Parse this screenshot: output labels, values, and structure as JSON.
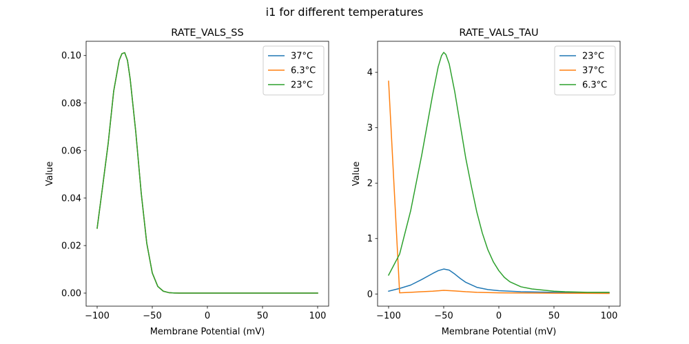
{
  "figure": {
    "suptitle": "i1 for different temperatures"
  },
  "colors": {
    "blue": "#1f77b4",
    "orange": "#ff7f0e",
    "green": "#2ca02c"
  },
  "chart_data": [
    {
      "type": "line",
      "title": "RATE_VALS_SS",
      "xlabel": "Membrane Potential (mV)",
      "ylabel": "Value",
      "xlim": [
        -110,
        110
      ],
      "ylim": [
        -0.0055,
        0.106
      ],
      "xticks": [
        -100,
        -50,
        0,
        50,
        100
      ],
      "xtick_labels": [
        "−100",
        "−50",
        "0",
        "50",
        "100"
      ],
      "yticks": [
        0,
        0.02,
        0.04,
        0.06,
        0.08,
        0.1
      ],
      "ytick_labels": [
        "0.00",
        "0.02",
        "0.04",
        "0.06",
        "0.08",
        "0.10"
      ],
      "legend": "top-right",
      "x": [
        -100,
        -95,
        -90,
        -85,
        -80,
        -77.5,
        -75,
        -72.5,
        -70,
        -65,
        -60,
        -55,
        -50,
        -45,
        -40,
        -35,
        -30,
        -25,
        -20,
        0,
        50,
        100
      ],
      "series": [
        {
          "name": "37°C",
          "color": "#1f77b4",
          "values": [
            0.0273,
            0.045,
            0.063,
            0.085,
            0.098,
            0.1008,
            0.1012,
            0.098,
            0.09,
            0.068,
            0.042,
            0.021,
            0.0085,
            0.0028,
            0.0008,
            0.0002,
            5e-05,
            1e-05,
            0,
            0,
            0,
            0
          ]
        },
        {
          "name": "6.3°C",
          "color": "#ff7f0e",
          "values": [
            0.0273,
            0.045,
            0.063,
            0.085,
            0.098,
            0.1008,
            0.1012,
            0.098,
            0.09,
            0.068,
            0.042,
            0.021,
            0.0085,
            0.0028,
            0.0008,
            0.0002,
            5e-05,
            1e-05,
            0,
            0,
            0,
            0
          ]
        },
        {
          "name": "23°C",
          "color": "#2ca02c",
          "values": [
            0.0273,
            0.045,
            0.063,
            0.085,
            0.098,
            0.1008,
            0.1012,
            0.098,
            0.09,
            0.068,
            0.042,
            0.021,
            0.0085,
            0.0028,
            0.0008,
            0.0002,
            5e-05,
            1e-05,
            0,
            0,
            0,
            0
          ]
        }
      ]
    },
    {
      "type": "line",
      "title": "RATE_VALS_TAU",
      "xlabel": "Membrane Potential (mV)",
      "ylabel": "Value",
      "xlim": [
        -110,
        110
      ],
      "ylim": [
        -0.22,
        4.56
      ],
      "xticks": [
        -100,
        -50,
        0,
        50,
        100
      ],
      "xtick_labels": [
        "−100",
        "−50",
        "0",
        "50",
        "100"
      ],
      "yticks": [
        0,
        1,
        2,
        3,
        4
      ],
      "ytick_labels": [
        "0",
        "1",
        "2",
        "3",
        "4"
      ],
      "legend": "top-right",
      "series": [
        {
          "name": "23°C",
          "color": "#1f77b4",
          "x": [
            -100,
            -90,
            -80,
            -70,
            -60,
            -55,
            -50,
            -45,
            -40,
            -35,
            -30,
            -20,
            -10,
            0,
            20,
            50,
            100
          ],
          "values": [
            0.05,
            0.1,
            0.16,
            0.26,
            0.37,
            0.42,
            0.45,
            0.43,
            0.36,
            0.28,
            0.21,
            0.12,
            0.08,
            0.06,
            0.04,
            0.03,
            0.02
          ]
        },
        {
          "name": "37°C",
          "color": "#ff7f0e",
          "x": [
            -100,
            -90,
            -80,
            -70,
            -60,
            -50,
            -40,
            -30,
            -20,
            0,
            50,
            100
          ],
          "values": [
            3.84,
            0.02,
            0.03,
            0.04,
            0.05,
            0.065,
            0.055,
            0.04,
            0.03,
            0.02,
            0.015,
            0.01
          ]
        },
        {
          "name": "6.3°C",
          "color": "#2ca02c",
          "x": [
            -100,
            -90,
            -80,
            -70,
            -60,
            -55,
            -52,
            -50,
            -48,
            -45,
            -40,
            -35,
            -30,
            -25,
            -20,
            -15,
            -10,
            -5,
            0,
            5,
            10,
            20,
            30,
            40,
            50,
            60,
            80,
            100
          ],
          "values": [
            0.34,
            0.72,
            1.5,
            2.5,
            3.6,
            4.1,
            4.3,
            4.36,
            4.32,
            4.15,
            3.65,
            3.05,
            2.45,
            1.95,
            1.48,
            1.1,
            0.8,
            0.58,
            0.42,
            0.3,
            0.22,
            0.13,
            0.09,
            0.07,
            0.05,
            0.04,
            0.03,
            0.03
          ]
        }
      ]
    }
  ]
}
